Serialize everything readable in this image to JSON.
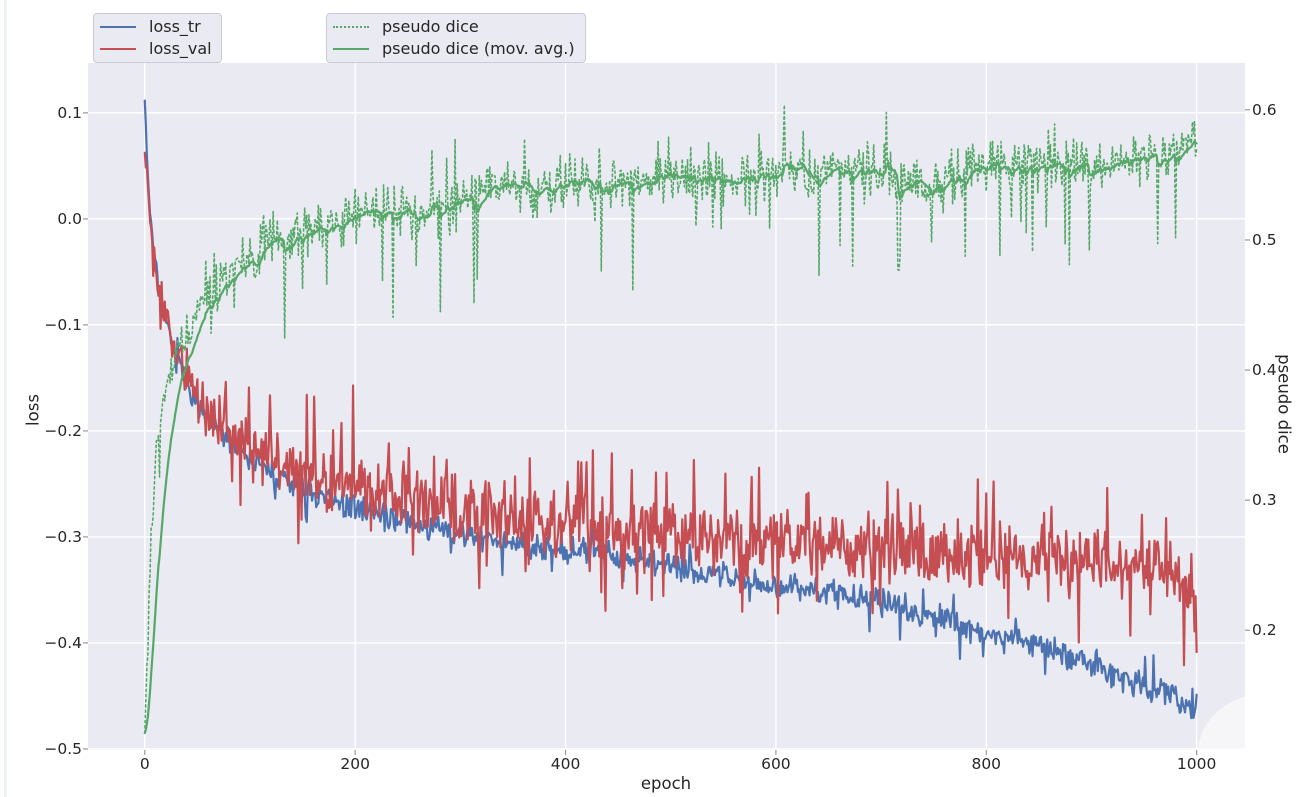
{
  "figure": {
    "background": "#ffffff",
    "axes_background": "#eaeaf2",
    "grid_color": "#ffffff",
    "tick_color": "#999999",
    "text_color": "#262626"
  },
  "legend": {
    "loss_box": {
      "items": [
        {
          "label": "loss_tr",
          "color": "#4c72b0",
          "style": "solid"
        },
        {
          "label": "loss_val",
          "color": "#c44e52",
          "style": "solid"
        }
      ]
    },
    "dice_box": {
      "items": [
        {
          "label": "pseudo dice",
          "color": "#55a868",
          "style": "dotted"
        },
        {
          "label": "pseudo dice (mov. avg.)",
          "color": "#55a868",
          "style": "solid"
        }
      ]
    }
  },
  "chart_data": {
    "type": "line",
    "title": "",
    "xlabel": "epoch",
    "ylabel_left": "loss",
    "ylabel_right": "pseudo dice",
    "grid": true,
    "x_range": [
      -54,
      1046
    ],
    "y_range_left": [
      -0.501,
      0.147
    ],
    "y_range_right": [
      0.108,
      0.636
    ],
    "x_ticks": [
      {
        "label": "0",
        "value": 0
      },
      {
        "label": "200",
        "value": 200
      },
      {
        "label": "400",
        "value": 400
      },
      {
        "label": "600",
        "value": 600
      },
      {
        "label": "800",
        "value": 800
      },
      {
        "label": "1000",
        "value": 1000
      }
    ],
    "y_ticks_left": [
      {
        "label": "0.1",
        "value": 0.1
      },
      {
        "label": "0.0",
        "value": 0.0
      },
      {
        "label": "−0.1",
        "value": -0.1
      },
      {
        "label": "−0.2",
        "value": -0.2
      },
      {
        "label": "−0.3",
        "value": -0.3
      },
      {
        "label": "−0.4",
        "value": -0.4
      },
      {
        "label": "−0.5",
        "value": -0.5
      }
    ],
    "y_ticks_right": [
      {
        "label": "0.6",
        "value": 0.6
      },
      {
        "label": "0.5",
        "value": 0.5
      },
      {
        "label": "0.4",
        "value": 0.4
      },
      {
        "label": "0.3",
        "value": 0.3
      },
      {
        "label": "0.2",
        "value": 0.2
      }
    ],
    "epoch_range": [
      0,
      1000
    ],
    "series": [
      {
        "name": "loss_tr",
        "axis": "left",
        "color": "#4c72b0",
        "line": "solid",
        "width": 2.2,
        "trend": [
          [
            0,
            0.115
          ],
          [
            2,
            0.06
          ],
          [
            4,
            0.02
          ],
          [
            6,
            -0.005
          ],
          [
            10,
            -0.04
          ],
          [
            15,
            -0.07
          ],
          [
            20,
            -0.095
          ],
          [
            30,
            -0.133
          ],
          [
            40,
            -0.155
          ],
          [
            50,
            -0.175
          ],
          [
            60,
            -0.19
          ],
          [
            75,
            -0.205
          ],
          [
            100,
            -0.225
          ],
          [
            125,
            -0.243
          ],
          [
            150,
            -0.257
          ],
          [
            175,
            -0.266
          ],
          [
            200,
            -0.272
          ],
          [
            250,
            -0.287
          ],
          [
            300,
            -0.297
          ],
          [
            350,
            -0.306
          ],
          [
            400,
            -0.313
          ],
          [
            430,
            -0.31
          ],
          [
            460,
            -0.32
          ],
          [
            500,
            -0.327
          ],
          [
            550,
            -0.336
          ],
          [
            600,
            -0.345
          ],
          [
            650,
            -0.352
          ],
          [
            700,
            -0.362
          ],
          [
            750,
            -0.375
          ],
          [
            800,
            -0.39
          ],
          [
            850,
            -0.403
          ],
          [
            900,
            -0.42
          ],
          [
            950,
            -0.44
          ],
          [
            980,
            -0.452
          ],
          [
            1000,
            -0.462
          ]
        ],
        "noise": {
          "amp": 0.012,
          "spike_p": 0.05,
          "spike_amp": 0.02,
          "seed": 7
        }
      },
      {
        "name": "loss_val",
        "axis": "left",
        "color": "#c44e52",
        "line": "solid",
        "width": 2.2,
        "trend": [
          [
            0,
            0.068
          ],
          [
            2,
            0.045
          ],
          [
            4,
            0.015
          ],
          [
            6,
            -0.01
          ],
          [
            10,
            -0.04
          ],
          [
            15,
            -0.07
          ],
          [
            20,
            -0.093
          ],
          [
            30,
            -0.128
          ],
          [
            40,
            -0.15
          ],
          [
            50,
            -0.168
          ],
          [
            60,
            -0.182
          ],
          [
            75,
            -0.196
          ],
          [
            100,
            -0.213
          ],
          [
            125,
            -0.227
          ],
          [
            150,
            -0.238
          ],
          [
            175,
            -0.246
          ],
          [
            200,
            -0.252
          ],
          [
            250,
            -0.263
          ],
          [
            300,
            -0.273
          ],
          [
            350,
            -0.281
          ],
          [
            400,
            -0.287
          ],
          [
            450,
            -0.292
          ],
          [
            500,
            -0.297
          ],
          [
            550,
            -0.3
          ],
          [
            600,
            -0.303
          ],
          [
            650,
            -0.307
          ],
          [
            700,
            -0.31
          ],
          [
            750,
            -0.313
          ],
          [
            800,
            -0.316
          ],
          [
            850,
            -0.318
          ],
          [
            900,
            -0.32
          ],
          [
            950,
            -0.328
          ],
          [
            985,
            -0.34
          ],
          [
            1000,
            -0.378
          ]
        ],
        "noise": {
          "amp": 0.029,
          "spike_p": 0.12,
          "spike_amp": 0.045,
          "seed": 13
        }
      },
      {
        "name": "pseudo dice",
        "axis": "right",
        "color": "#55a868",
        "line": "dotted",
        "width": 1.6,
        "trend": [
          [
            0,
            0.125
          ],
          [
            3,
            0.2
          ],
          [
            6,
            0.27
          ],
          [
            10,
            0.33
          ],
          [
            15,
            0.365
          ],
          [
            20,
            0.385
          ],
          [
            30,
            0.41
          ],
          [
            40,
            0.428
          ],
          [
            50,
            0.442
          ],
          [
            60,
            0.455
          ],
          [
            80,
            0.474
          ],
          [
            100,
            0.49
          ],
          [
            120,
            0.498
          ],
          [
            150,
            0.506
          ],
          [
            175,
            0.513
          ],
          [
            200,
            0.52
          ],
          [
            230,
            0.524
          ],
          [
            260,
            0.52
          ],
          [
            290,
            0.528
          ],
          [
            320,
            0.537
          ],
          [
            350,
            0.542
          ],
          [
            380,
            0.538
          ],
          [
            410,
            0.546
          ],
          [
            440,
            0.538
          ],
          [
            470,
            0.546
          ],
          [
            500,
            0.548
          ],
          [
            530,
            0.552
          ],
          [
            560,
            0.547
          ],
          [
            590,
            0.552
          ],
          [
            620,
            0.552
          ],
          [
            650,
            0.553
          ],
          [
            680,
            0.556
          ],
          [
            710,
            0.548
          ],
          [
            740,
            0.54
          ],
          [
            760,
            0.545
          ],
          [
            780,
            0.553
          ],
          [
            800,
            0.556
          ],
          [
            830,
            0.558
          ],
          [
            860,
            0.557
          ],
          [
            890,
            0.558
          ],
          [
            920,
            0.558
          ],
          [
            950,
            0.562
          ],
          [
            975,
            0.566
          ],
          [
            1000,
            0.578
          ]
        ],
        "noise": {
          "amp": 0.02,
          "dip_p": 0.055,
          "dip_amp": 0.075,
          "up_p": 0.03,
          "up_amp": 0.03,
          "seed": 29
        }
      },
      {
        "name": "pseudo dice (mov. avg.)",
        "axis": "right",
        "color": "#55a868",
        "line": "solid",
        "width": 2.2,
        "derived_from": "pseudo dice",
        "ema_alpha": 0.9
      }
    ]
  }
}
